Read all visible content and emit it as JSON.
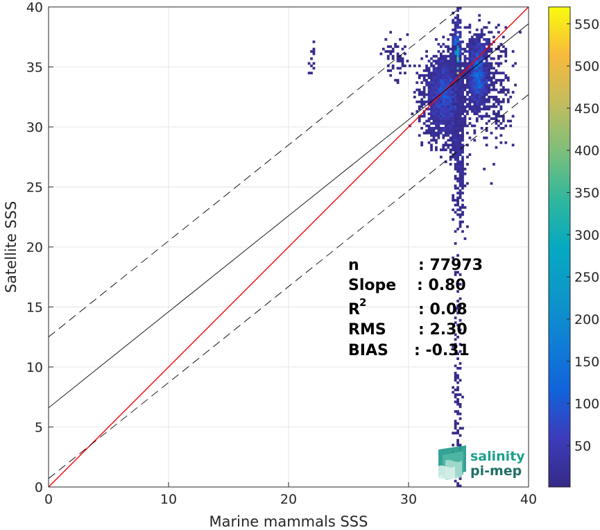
{
  "chart_data": {
    "type": "heatmap",
    "title": "",
    "xlabel": "Marine mammals SSS",
    "ylabel": "Satellite SSS",
    "xlim": [
      0,
      40
    ],
    "ylim": [
      0,
      40
    ],
    "xticks": [
      "0",
      "10",
      "20",
      "30",
      "40"
    ],
    "yticks": [
      "0",
      "5",
      "10",
      "15",
      "20",
      "25",
      "30",
      "35",
      "40"
    ],
    "grid": true,
    "colorbar": {
      "range": [
        1,
        570
      ],
      "ticks": [
        "50",
        "100",
        "150",
        "200",
        "250",
        "300",
        "350",
        "400",
        "450",
        "500",
        "550"
      ],
      "colormap": "parula"
    },
    "lines": [
      {
        "name": "identity",
        "slope": 1.0,
        "intercept": 0.0,
        "color": "#ff0000",
        "style": "solid"
      },
      {
        "name": "regression",
        "slope": 0.8,
        "intercept": 6.6,
        "color": "#000000",
        "style": "solid"
      },
      {
        "name": "upper",
        "slope": 0.8,
        "intercept": 12.5,
        "color": "#000000",
        "style": "dashed"
      },
      {
        "name": "lower",
        "slope": 0.8,
        "intercept": 0.7,
        "color": "#000000",
        "style": "dashed"
      }
    ],
    "density_clusters": [
      {
        "x": 34.0,
        "y": 33.5,
        "sx": 0.18,
        "sy": 2.2,
        "n": 2600,
        "peak": 570
      },
      {
        "x": 33.0,
        "y": 32.5,
        "sx": 0.8,
        "sy": 1.6,
        "n": 2200,
        "peak": 120
      },
      {
        "x": 35.8,
        "y": 34.5,
        "sx": 0.45,
        "sy": 1.6,
        "n": 1300,
        "peak": 160
      },
      {
        "x": 34.2,
        "y": 28.0,
        "sx": 0.25,
        "sy": 3.0,
        "n": 350,
        "peak": 40
      },
      {
        "x": 34.1,
        "y": 8.0,
        "sx": 0.18,
        "sy": 5.0,
        "n": 120,
        "peak": 10
      },
      {
        "x": 29.0,
        "y": 35.5,
        "sx": 0.6,
        "sy": 0.8,
        "n": 60,
        "peak": 10
      },
      {
        "x": 22.0,
        "y": 35.5,
        "sx": 0.15,
        "sy": 1.0,
        "n": 12,
        "peak": 5
      },
      {
        "x": 37.5,
        "y": 33.0,
        "sx": 0.6,
        "sy": 2.5,
        "n": 180,
        "peak": 20
      }
    ]
  },
  "stats": {
    "n_label": "n",
    "n_value": ": 77973",
    "slope_label": "Slope",
    "slope_value": ": 0.80",
    "r2_label": "R",
    "r2_sup": "2",
    "r2_value": ": 0.08",
    "rms_label": "RMS",
    "rms_value": ": 2.30",
    "bias_label": "BIAS",
    "bias_value": ": -0.31"
  },
  "logo": {
    "line1": "salinity",
    "line2": "pi-mep"
  },
  "colors": {
    "identity": "#ff0000",
    "grid": "#e6e6e6",
    "logo": "#1fa08c"
  }
}
